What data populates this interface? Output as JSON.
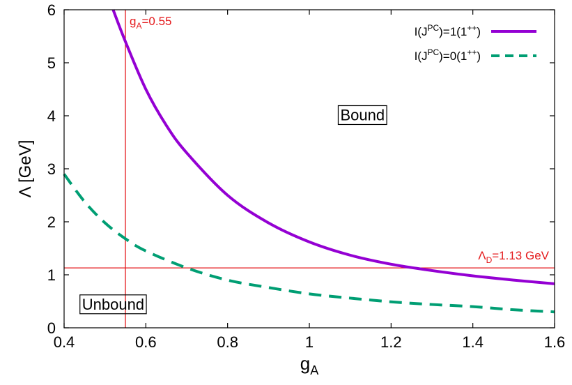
{
  "chart_data": {
    "type": "line",
    "xlabel": {
      "main": "g",
      "sub": "A"
    },
    "ylabel": "Λ [GeV]",
    "xlim": [
      0.4,
      1.6
    ],
    "ylim": [
      0,
      6
    ],
    "xticks": [
      0.4,
      0.6,
      0.8,
      1,
      1.2,
      1.4,
      1.6
    ],
    "xtick_labels": [
      "0.4",
      "0.6",
      "0.8",
      "1",
      "1.2",
      "1.4",
      "1.6"
    ],
    "yticks": [
      0,
      1,
      2,
      3,
      4,
      5,
      6
    ],
    "ytick_labels": [
      "0",
      "1",
      "2",
      "3",
      "4",
      "5",
      "6"
    ],
    "grid": false,
    "legend_position": "top-right",
    "series": [
      {
        "name": "I(J^PC)=1(1^++)",
        "legend_parts": {
          "a": "I(J",
          "sup1": "PC",
          "b": ")=1(1",
          "sup2": "++",
          "c": ")"
        },
        "color": "#9400d3",
        "style": "solid",
        "x": [
          0.52,
          0.55,
          0.6,
          0.65,
          0.7,
          0.8,
          0.9,
          1.0,
          1.1,
          1.2,
          1.3,
          1.4,
          1.5,
          1.6
        ],
        "y": [
          6.0,
          5.4,
          4.5,
          3.82,
          3.3,
          2.5,
          1.98,
          1.62,
          1.37,
          1.2,
          1.08,
          0.98,
          0.9,
          0.83
        ]
      },
      {
        "name": "I(J^PC)=0(1^++)",
        "legend_parts": {
          "a": "I(J",
          "sup1": "PC",
          "b": ")=0(1",
          "sup2": "++",
          "c": ")"
        },
        "color": "#009e73",
        "style": "dashed",
        "x": [
          0.4,
          0.45,
          0.5,
          0.55,
          0.6,
          0.7,
          0.8,
          0.9,
          1.0,
          1.1,
          1.2,
          1.3,
          1.4,
          1.5,
          1.6
        ],
        "y": [
          2.9,
          2.38,
          1.98,
          1.68,
          1.45,
          1.13,
          0.9,
          0.76,
          0.64,
          0.56,
          0.49,
          0.44,
          0.4,
          0.34,
          0.3
        ]
      }
    ],
    "reference_lines": [
      {
        "orientation": "vertical",
        "value": 0.55,
        "color": "#e41a1c",
        "label": {
          "main": "g",
          "sub": "A",
          "rest": "=0.55"
        }
      },
      {
        "orientation": "horizontal",
        "value": 1.13,
        "color": "#e41a1c",
        "label": {
          "main": "Λ",
          "sub": "D",
          "rest": "=1.13 GeV"
        }
      }
    ],
    "annotations": [
      {
        "text": "Bound",
        "x": 1.13,
        "y": 4.02,
        "boxed": true
      },
      {
        "text": "Unbound",
        "x": 0.52,
        "y": 0.45,
        "boxed": true
      }
    ]
  }
}
